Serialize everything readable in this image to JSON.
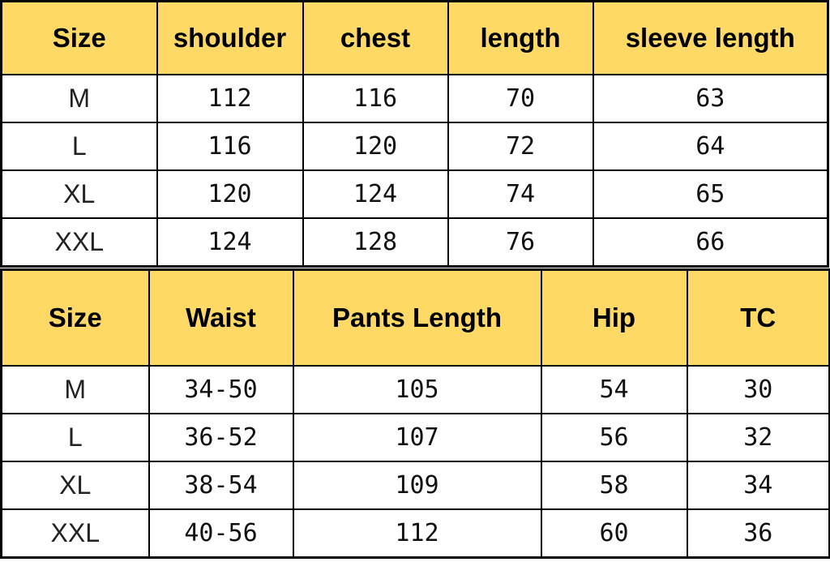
{
  "top_table": {
    "headers": [
      "Size",
      "shoulder",
      "chest",
      "length",
      "sleeve length"
    ],
    "rows": [
      [
        "M",
        "112",
        "116",
        "70",
        "63"
      ],
      [
        "L",
        "116",
        "120",
        "72",
        "64"
      ],
      [
        "XL",
        "120",
        "124",
        "74",
        "65"
      ],
      [
        "XXL",
        "124",
        "128",
        "76",
        "66"
      ]
    ]
  },
  "bottom_table": {
    "headers": [
      "Size",
      "Waist",
      "Pants Length",
      "Hip",
      "TC"
    ],
    "rows": [
      [
        "M",
        "34-50",
        "105",
        "54",
        "30"
      ],
      [
        "L",
        "36-52",
        "107",
        "56",
        "32"
      ],
      [
        "XL",
        "38-54",
        "109",
        "58",
        "34"
      ],
      [
        "XXL",
        "40-56",
        "112",
        "60",
        "36"
      ]
    ]
  },
  "colors": {
    "header_bg": "#FFD966",
    "border": "#000000"
  }
}
